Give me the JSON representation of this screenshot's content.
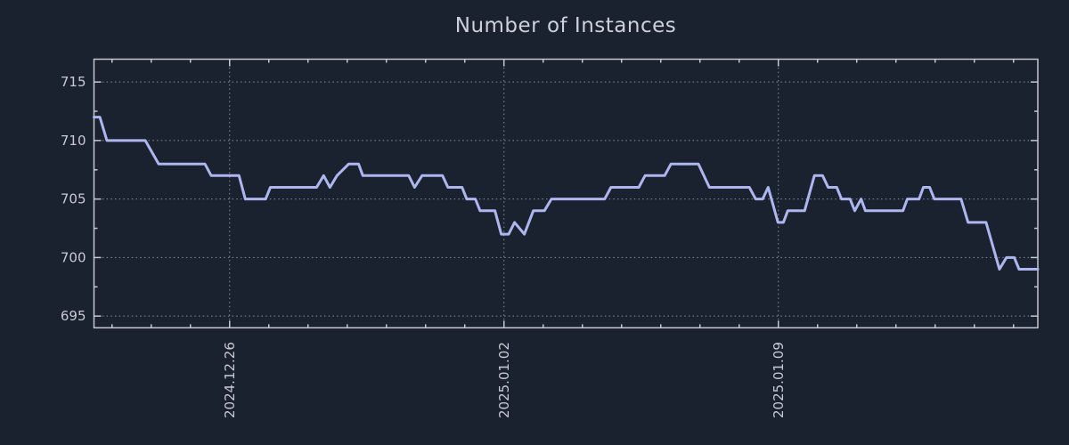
{
  "header": {
    "title": "Number of Instances"
  },
  "colors": {
    "background": "#1a2230",
    "line": "#aeb6f0",
    "axis": "#c3c8d0",
    "grid": "#8a909a",
    "tick_label": "#c6cbd4",
    "title": "#cdd2da"
  },
  "chart_data": {
    "type": "line",
    "title": "Number of Instances",
    "xlabel": "",
    "ylabel": "",
    "legend": "none",
    "grid": "dotted lines at major ticks only",
    "x_axis": {
      "unit": "date",
      "note": "t = days measured from 2024-12-22 00:00; axis range spans ~2024-12-22 to ~2025-01-15",
      "lim": [
        0.54,
        24.62
      ],
      "major_ticks": [
        {
          "t": 4,
          "label": "2024.12.26"
        },
        {
          "t": 11,
          "label": "2025.01.02"
        },
        {
          "t": 18,
          "label": "2025.01.09"
        }
      ],
      "minor_tick_every_days": 1,
      "tick_label_rotation_deg": -90
    },
    "y_axis": {
      "lim": [
        694.0,
        716.95
      ],
      "major_ticks": [
        695,
        700,
        705,
        710,
        715
      ],
      "minor_ticks": [
        697.5,
        702.5,
        707.5,
        712.5
      ]
    },
    "series": [
      {
        "name": "instances",
        "color": "#aeb6f0",
        "points": [
          [
            0.54,
            712
          ],
          [
            0.69,
            712
          ],
          [
            0.87,
            710
          ],
          [
            1.85,
            710
          ],
          [
            2.19,
            708
          ],
          [
            3.37,
            708
          ],
          [
            3.53,
            707
          ],
          [
            4.24,
            707
          ],
          [
            4.4,
            705
          ],
          [
            4.92,
            705
          ],
          [
            5.04,
            706
          ],
          [
            6.22,
            706
          ],
          [
            6.4,
            707
          ],
          [
            6.56,
            706
          ],
          [
            6.74,
            707
          ],
          [
            7.04,
            708
          ],
          [
            7.29,
            708
          ],
          [
            7.4,
            707
          ],
          [
            8.57,
            707
          ],
          [
            8.72,
            706
          ],
          [
            8.91,
            707
          ],
          [
            9.43,
            707
          ],
          [
            9.57,
            706
          ],
          [
            9.93,
            706
          ],
          [
            10.05,
            705
          ],
          [
            10.27,
            705
          ],
          [
            10.39,
            704
          ],
          [
            10.77,
            704
          ],
          [
            10.93,
            702
          ],
          [
            11.12,
            702
          ],
          [
            11.27,
            703
          ],
          [
            11.52,
            702
          ],
          [
            11.75,
            704
          ],
          [
            12.03,
            704
          ],
          [
            12.21,
            705
          ],
          [
            13.57,
            705
          ],
          [
            13.73,
            706
          ],
          [
            14.44,
            706
          ],
          [
            14.6,
            707
          ],
          [
            15.1,
            707
          ],
          [
            15.26,
            708
          ],
          [
            15.96,
            708
          ],
          [
            16.24,
            706
          ],
          [
            17.26,
            706
          ],
          [
            17.42,
            705
          ],
          [
            17.6,
            705
          ],
          [
            17.74,
            706
          ],
          [
            17.99,
            703
          ],
          [
            18.13,
            703
          ],
          [
            18.24,
            704
          ],
          [
            18.67,
            704
          ],
          [
            18.92,
            707
          ],
          [
            19.13,
            707
          ],
          [
            19.27,
            706
          ],
          [
            19.49,
            706
          ],
          [
            19.61,
            705
          ],
          [
            19.83,
            705
          ],
          [
            19.95,
            704
          ],
          [
            20.11,
            705
          ],
          [
            20.22,
            704
          ],
          [
            21.18,
            704
          ],
          [
            21.29,
            705
          ],
          [
            21.59,
            705
          ],
          [
            21.7,
            706
          ],
          [
            21.86,
            706
          ],
          [
            21.98,
            705
          ],
          [
            22.66,
            705
          ],
          [
            22.84,
            703
          ],
          [
            23.3,
            703
          ],
          [
            23.64,
            699
          ],
          [
            23.82,
            700
          ],
          [
            24.02,
            700
          ],
          [
            24.14,
            699
          ],
          [
            24.62,
            699
          ]
        ]
      }
    ]
  }
}
